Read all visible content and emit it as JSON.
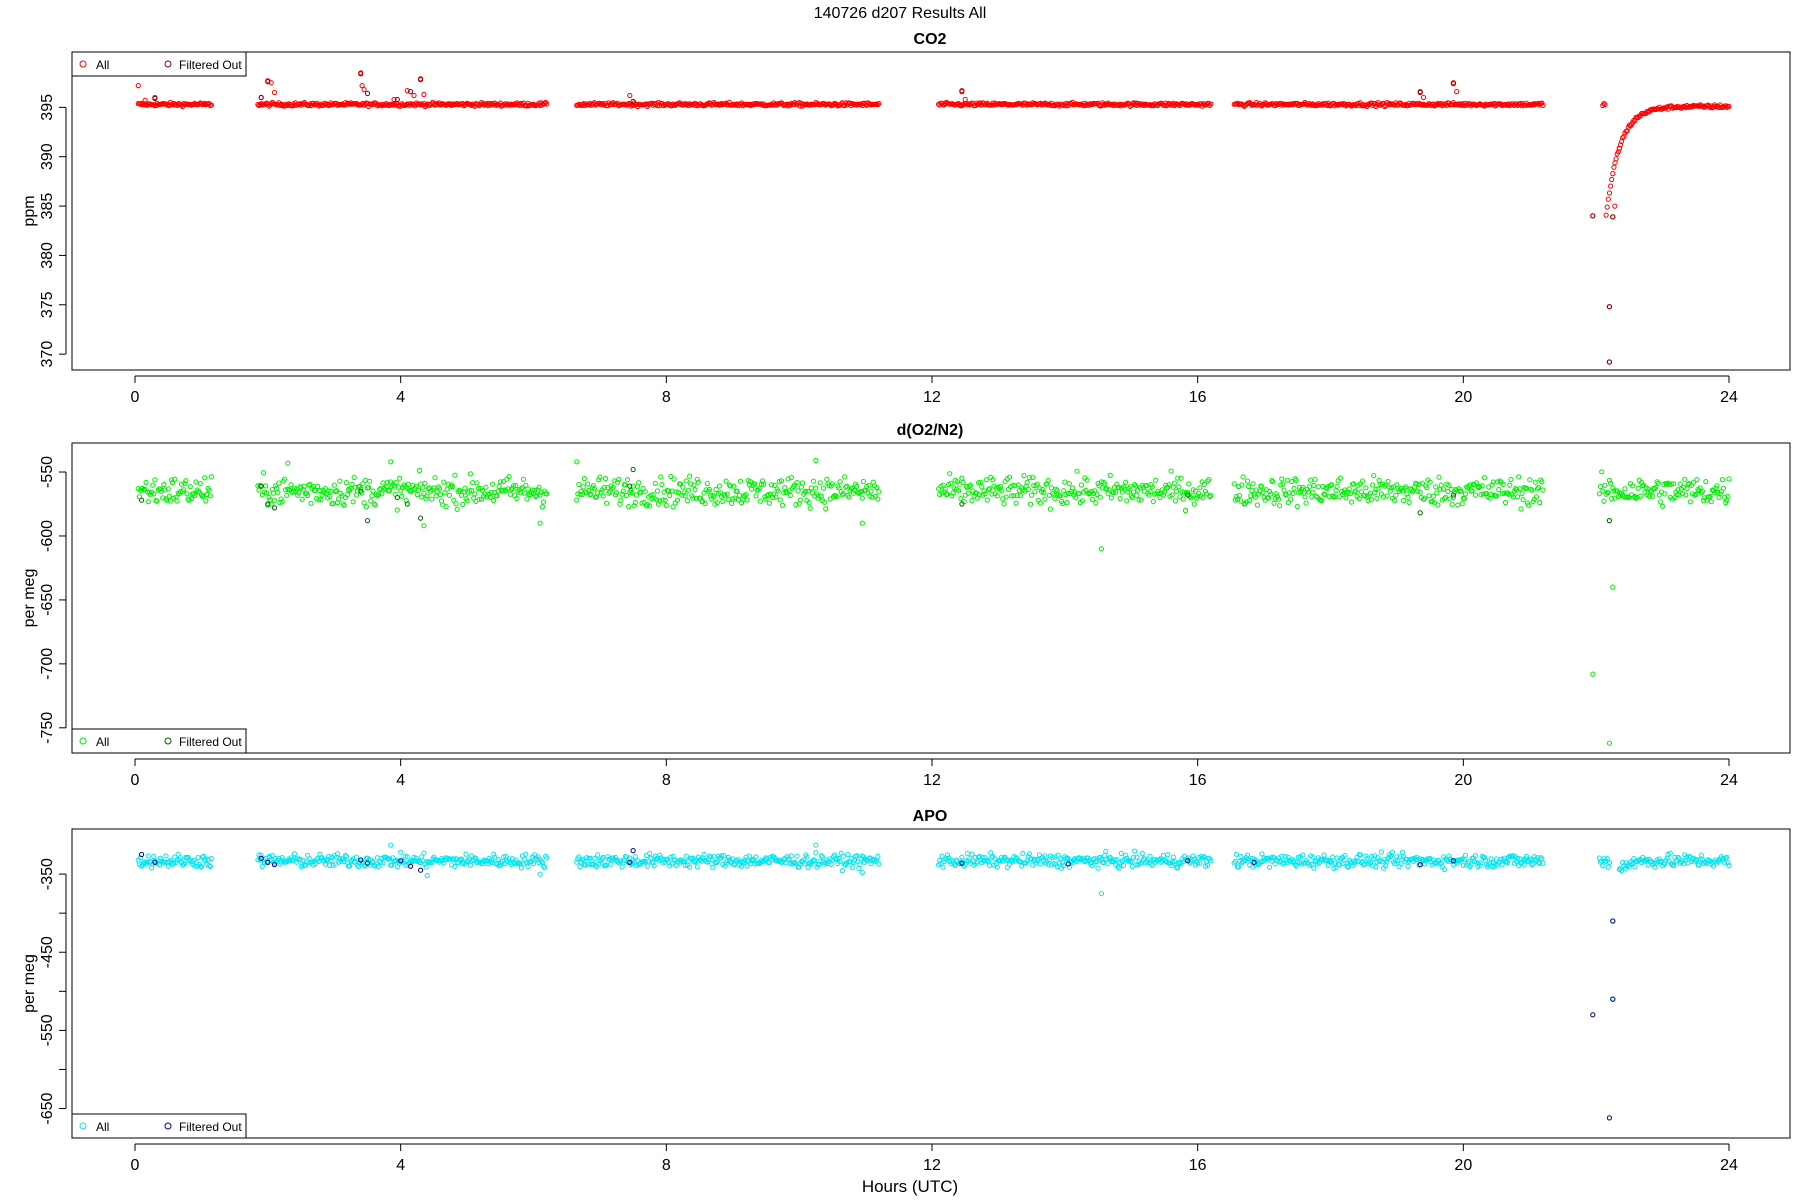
{
  "figure": {
    "title": "140726   d207   Results All",
    "xlabel": "Hours (UTC)"
  },
  "legend": {
    "all_label": "All",
    "filtered_label": "Filtered Out"
  },
  "colors": {
    "co2_all": "#ff0000",
    "co2_filtered": "#8b0000",
    "o2_all": "#00ee00",
    "o2_filtered": "#006400",
    "apo_all": "#00e5ee",
    "apo_filtered": "#00008b",
    "axis": "#000000"
  },
  "chart_data": [
    {
      "type": "scatter",
      "title": "CO2",
      "ylabel": "ppm",
      "xlim": [
        0,
        24
      ],
      "ylim": [
        369,
        400
      ],
      "xticks": [
        0,
        4,
        8,
        12,
        16,
        20,
        24
      ],
      "yticks": [
        370,
        375,
        380,
        385,
        390,
        395
      ],
      "legend_position": "top-left",
      "baseline": 395.3,
      "noise": 0.12,
      "segments": [
        [
          0.05,
          1.15
        ],
        [
          1.85,
          6.2
        ],
        [
          6.65,
          11.2
        ],
        [
          12.1,
          16.2
        ],
        [
          16.55,
          21.2
        ],
        [
          22.1,
          22.35
        ],
        [
          22.35,
          24.0
        ]
      ],
      "recovery": {
        "start": 22.15,
        "end": 24.0,
        "from": 384,
        "to": 395.1
      },
      "series": [
        {
          "name": "All",
          "role": "all",
          "points": [
            [
              0.05,
              397.2
            ],
            [
              0.15,
              395.7
            ],
            [
              0.3,
              396.0
            ],
            [
              1.9,
              396.0
            ],
            [
              2.0,
              397.7
            ],
            [
              2.05,
              397.5
            ],
            [
              2.1,
              396.5
            ],
            [
              3.4,
              398.5
            ],
            [
              3.42,
              397.2
            ],
            [
              3.45,
              396.8
            ],
            [
              3.9,
              395.8
            ],
            [
              4.1,
              396.7
            ],
            [
              4.2,
              396.2
            ],
            [
              4.3,
              397.9
            ],
            [
              4.35,
              396.3
            ],
            [
              7.45,
              396.2
            ],
            [
              12.45,
              396.7
            ],
            [
              12.5,
              395.8
            ],
            [
              19.35,
              396.6
            ],
            [
              19.4,
              396.0
            ],
            [
              19.85,
              397.5
            ],
            [
              19.9,
              396.6
            ],
            [
              21.95,
              384.0
            ],
            [
              22.2,
              374.8
            ],
            [
              22.2,
              369.2
            ],
            [
              22.25,
              383.9
            ],
            [
              22.28,
              385.0
            ]
          ]
        },
        {
          "name": "Filtered Out",
          "role": "filtered",
          "points": [
            [
              0.3,
              395.9
            ],
            [
              1.9,
              396.0
            ],
            [
              2.0,
              397.6
            ],
            [
              3.4,
              398.4
            ],
            [
              3.5,
              396.4
            ],
            [
              3.95,
              395.8
            ],
            [
              4.15,
              396.6
            ],
            [
              4.3,
              397.8
            ],
            [
              7.5,
              395.6
            ],
            [
              12.45,
              396.6
            ],
            [
              19.35,
              396.5
            ],
            [
              19.85,
              397.4
            ],
            [
              21.95,
              384.0
            ],
            [
              22.2,
              374.8
            ],
            [
              22.2,
              369.2
            ],
            [
              22.25,
              383.9
            ]
          ]
        }
      ]
    },
    {
      "type": "scatter",
      "title": "d(O2/N2)",
      "ylabel": "per meg",
      "xlim": [
        0,
        24
      ],
      "ylim": [
        -765,
        -532
      ],
      "xticks": [
        0,
        4,
        8,
        12,
        16,
        20,
        24
      ],
      "yticks": [
        -550,
        -600,
        -650,
        -700,
        -750
      ],
      "legend_position": "bottom-left",
      "baseline": -565,
      "noise": 8,
      "segments": [
        [
          0.05,
          1.15
        ],
        [
          1.85,
          6.2
        ],
        [
          6.65,
          11.2
        ],
        [
          12.1,
          16.2
        ],
        [
          16.55,
          21.2
        ],
        [
          22.05,
          24.0
        ]
      ],
      "series": [
        {
          "name": "All",
          "role": "all",
          "points": [
            [
              2.3,
              -543
            ],
            [
              3.85,
              -542
            ],
            [
              6.65,
              -542
            ],
            [
              10.25,
              -541
            ],
            [
              14.55,
              -610
            ],
            [
              22.2,
              -588
            ],
            [
              22.25,
              -640
            ],
            [
              21.95,
              -708
            ],
            [
              22.2,
              -762
            ],
            [
              4.35,
              -592
            ],
            [
              6.1,
              -590
            ],
            [
              10.95,
              -590
            ]
          ]
        },
        {
          "name": "Filtered Out",
          "role": "filtered",
          "points": [
            [
              0.1,
              -572
            ],
            [
              1.9,
              -561
            ],
            [
              2.0,
              -575
            ],
            [
              2.1,
              -578
            ],
            [
              3.4,
              -565
            ],
            [
              3.5,
              -588
            ],
            [
              3.95,
              -570
            ],
            [
              4.1,
              -575
            ],
            [
              4.3,
              -586
            ],
            [
              7.45,
              -561
            ],
            [
              7.5,
              -548
            ],
            [
              12.45,
              -575
            ],
            [
              15.85,
              -568
            ],
            [
              19.35,
              -582
            ],
            [
              19.85,
              -568
            ],
            [
              22.2,
              -588
            ]
          ]
        }
      ]
    },
    {
      "type": "scatter",
      "title": "APO",
      "ylabel": "per meg",
      "xlim": [
        0,
        24
      ],
      "ylim": [
        -680,
        -300
      ],
      "xticks": [
        0,
        4,
        8,
        12,
        16,
        20,
        24
      ],
      "yticks": [
        -350,
        -450,
        -550,
        -650
      ],
      "legend_position": "bottom-left",
      "baseline": -333,
      "noise": 6,
      "segments": [
        [
          0.05,
          1.15
        ],
        [
          1.85,
          6.2
        ],
        [
          6.65,
          11.2
        ],
        [
          12.1,
          16.2
        ],
        [
          16.55,
          21.2
        ],
        [
          22.05,
          22.2
        ],
        [
          22.35,
          24.0
        ]
      ],
      "recovery": {
        "start": 22.22,
        "end": 22.7,
        "from": -365,
        "to": -333
      },
      "series": [
        {
          "name": "All",
          "role": "all",
          "points": [
            [
              3.85,
              -313
            ],
            [
              10.25,
              -313
            ],
            [
              14.55,
              -375
            ],
            [
              4.4,
              -352
            ],
            [
              6.1,
              -350
            ],
            [
              10.95,
              -348
            ],
            [
              22.25,
              -410
            ],
            [
              22.25,
              -510
            ]
          ]
        },
        {
          "name": "Filtered Out",
          "role": "filtered",
          "points": [
            [
              0.1,
              -325
            ],
            [
              0.3,
              -335
            ],
            [
              1.9,
              -330
            ],
            [
              2.0,
              -335
            ],
            [
              2.1,
              -338
            ],
            [
              3.4,
              -332
            ],
            [
              3.5,
              -336
            ],
            [
              4.0,
              -333
            ],
            [
              4.15,
              -340
            ],
            [
              4.3,
              -345
            ],
            [
              7.45,
              -335
            ],
            [
              7.5,
              -320
            ],
            [
              12.45,
              -336
            ],
            [
              14.05,
              -337
            ],
            [
              15.85,
              -333
            ],
            [
              16.85,
              -335
            ],
            [
              19.35,
              -338
            ],
            [
              19.85,
              -333
            ],
            [
              21.95,
              -530
            ],
            [
              22.25,
              -410
            ],
            [
              22.25,
              -510
            ],
            [
              22.2,
              -662
            ]
          ]
        }
      ]
    }
  ]
}
